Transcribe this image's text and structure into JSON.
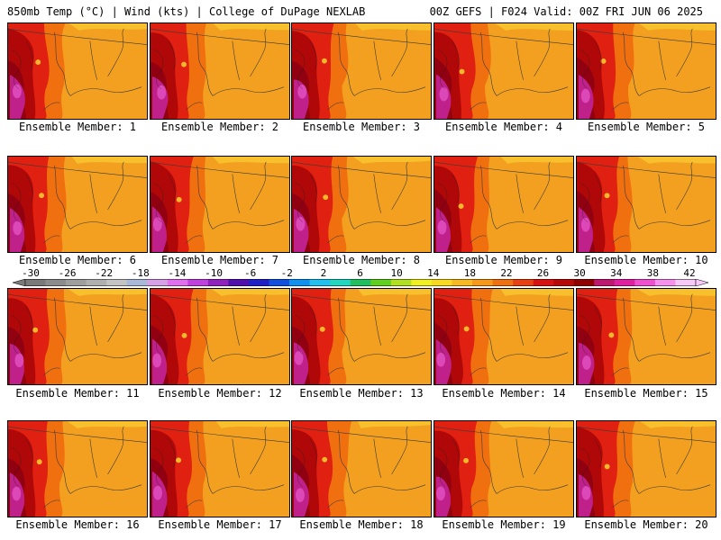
{
  "header": {
    "left": "850mb Temp (°C) | Wind (kts) | College of DuPage NEXLAB",
    "right": "00Z GEFS | F024 Valid: 00Z FRI JUN 06 2025"
  },
  "members": [
    {
      "label": "Ensemble Member: 1"
    },
    {
      "label": "Ensemble Member: 2"
    },
    {
      "label": "Ensemble Member: 3"
    },
    {
      "label": "Ensemble Member: 4"
    },
    {
      "label": "Ensemble Member: 5"
    },
    {
      "label": "Ensemble Member: 6"
    },
    {
      "label": "Ensemble Member: 7"
    },
    {
      "label": "Ensemble Member: 8"
    },
    {
      "label": "Ensemble Member: 9"
    },
    {
      "label": "Ensemble Member: 10"
    },
    {
      "label": "Ensemble Member: 11"
    },
    {
      "label": "Ensemble Member: 12"
    },
    {
      "label": "Ensemble Member: 13"
    },
    {
      "label": "Ensemble Member: 14"
    },
    {
      "label": "Ensemble Member: 15"
    },
    {
      "label": "Ensemble Member: 16"
    },
    {
      "label": "Ensemble Member: 17"
    },
    {
      "label": "Ensemble Member: 18"
    },
    {
      "label": "Ensemble Member: 19"
    },
    {
      "label": "Ensemble Member: 20"
    }
  ],
  "colorbar": {
    "labels": [
      "-30",
      "-26",
      "-22",
      "-18",
      "-14",
      "-10",
      "-6",
      "-2",
      "2",
      "6",
      "10",
      "14",
      "18",
      "22",
      "26",
      "30",
      "34",
      "38",
      "42"
    ],
    "colors": [
      "#7a7a7a",
      "#8c8c8c",
      "#9e9e9e",
      "#b0b0b0",
      "#c4c4c4",
      "#a8b8d8",
      "#d8a0e8",
      "#e070f0",
      "#c040e0",
      "#9020c0",
      "#5010b0",
      "#2020c8",
      "#1050e0",
      "#1090f0",
      "#20c0f0",
      "#20d8c0",
      "#20c060",
      "#60d020",
      "#b0e020",
      "#f0f020",
      "#f8d820",
      "#f8b820",
      "#f89818",
      "#f07010",
      "#e84010",
      "#d81010",
      "#b80808",
      "#900000",
      "#c01870",
      "#e020a0",
      "#f050d0",
      "#f890f0",
      "#f8c8f8"
    ]
  },
  "map_colors": {
    "base": "#f3a020",
    "warm": "#f07010",
    "hot": "#e02010",
    "very_hot": "#b00808",
    "dark_red": "#900010",
    "magenta": "#c0208a",
    "pink": "#e050c0",
    "yellow": "#f8c830"
  }
}
